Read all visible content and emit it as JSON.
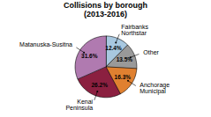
{
  "chart_data": {
    "type": "pie",
    "title": "Collisions by borough\n(2013-2016)",
    "categories": [
      "Fairbanks\nNorthstar",
      "Other",
      "Anchorage\nMunicipal",
      "Kenai\nPeninsula",
      "Matanuska-Susitna"
    ],
    "values": [
      12.4,
      13.5,
      16.3,
      26.2,
      31.6
    ],
    "value_labels": [
      "12.4%",
      "13.5%",
      "16.3%",
      "26.2%",
      "31.6%"
    ],
    "colors": [
      "#a8c8e0",
      "#999999",
      "#e08030",
      "#8b2040",
      "#b07ab0"
    ],
    "data_labels": true
  }
}
